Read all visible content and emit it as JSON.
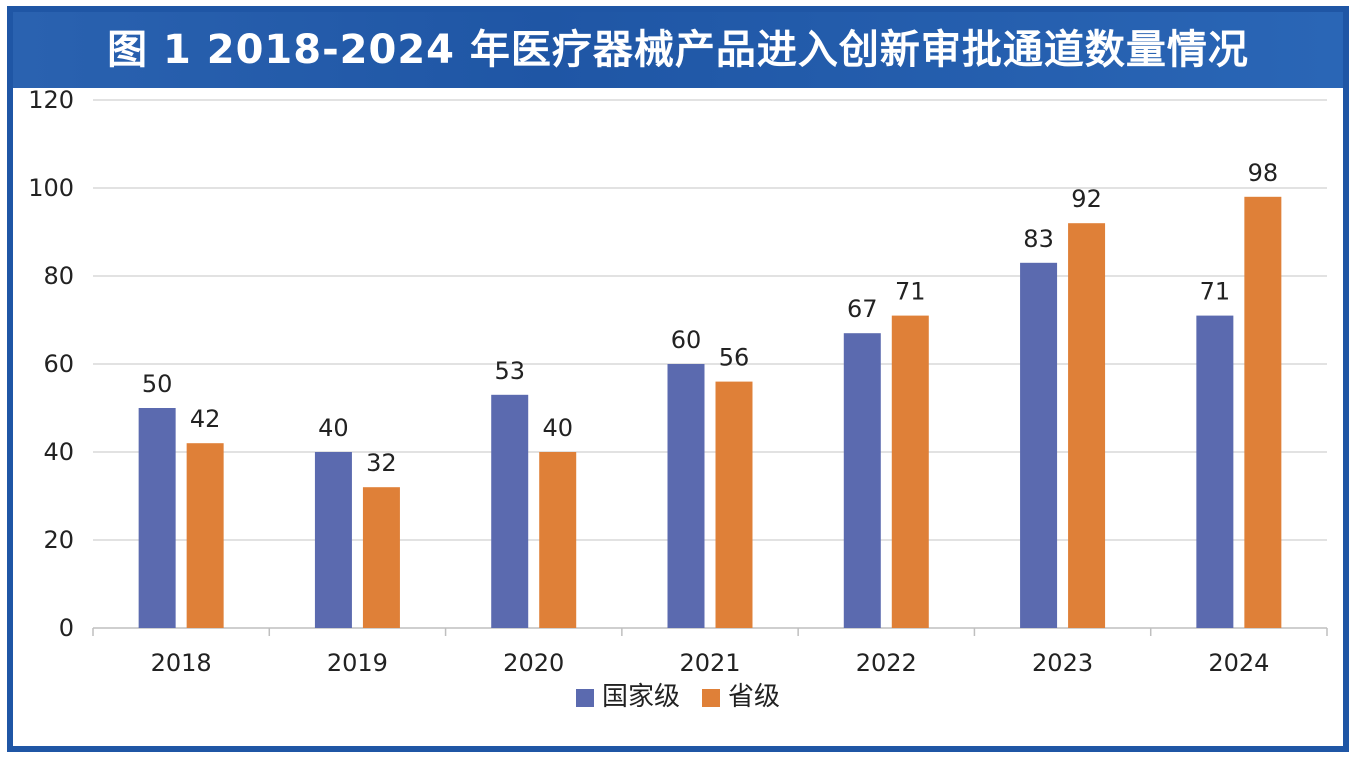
{
  "title": "图 1 2018-2024 年医疗器械产品进入创新审批通道数量情况",
  "chart_data": {
    "type": "bar",
    "categories": [
      "2018",
      "2019",
      "2020",
      "2021",
      "2022",
      "2023",
      "2024"
    ],
    "series": [
      {
        "name": "国家级",
        "color": "#5b6aaf",
        "values": [
          50,
          40,
          53,
          60,
          67,
          83,
          71
        ]
      },
      {
        "name": "省级",
        "color": "#df8038",
        "values": [
          42,
          32,
          40,
          56,
          71,
          92,
          98
        ]
      }
    ],
    "ylim": [
      0,
      120
    ],
    "yticks": [
      0,
      20,
      40,
      60,
      80,
      100,
      120
    ],
    "grid": true,
    "legend_position": "bottom",
    "data_labels": true
  }
}
